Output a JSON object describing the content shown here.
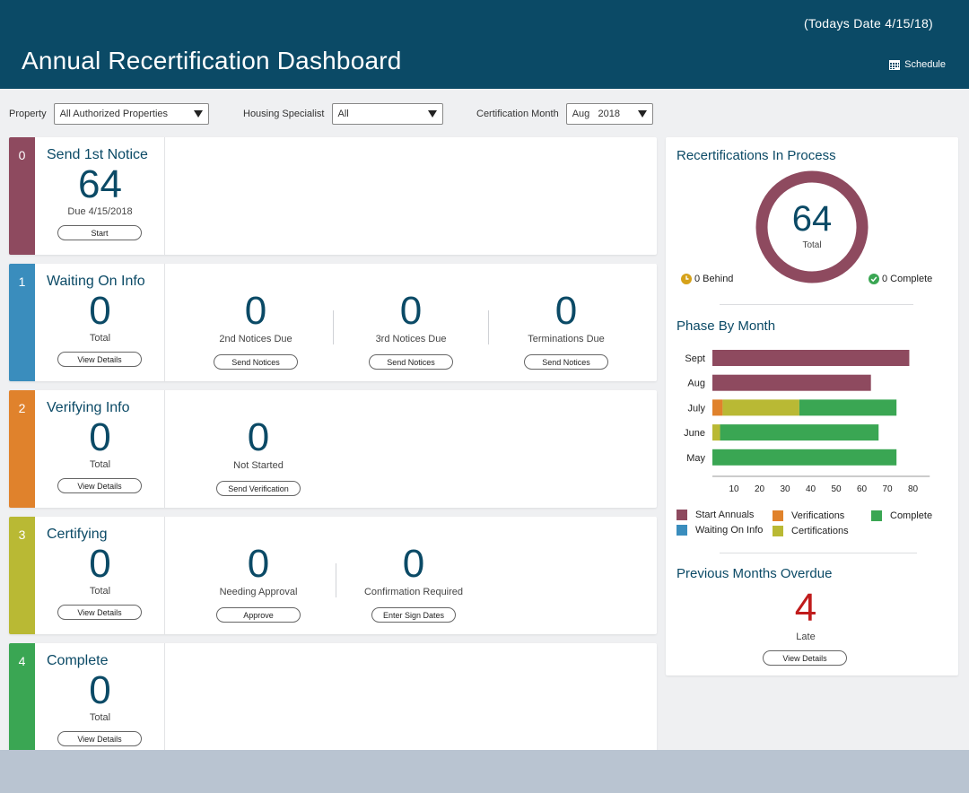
{
  "header": {
    "date_text": "(Todays Date 4/15/18)",
    "title": "Annual Recertification Dashboard",
    "schedule_label": "Schedule"
  },
  "filters": {
    "property_label": "Property",
    "property_value": "All Authorized Properties",
    "specialist_label": "Housing Specialist",
    "specialist_value": "All",
    "month_label": "Certification Month",
    "month_value": "Aug",
    "year_value": "2018"
  },
  "colors": {
    "brand": "#0b4a66",
    "phase0": "#8e4a5f",
    "phase1": "#3a8dbd",
    "phase2": "#e0822c",
    "phase3": "#b9b934",
    "phase4": "#3aa653",
    "overdue": "#c01c1c"
  },
  "phases": [
    {
      "index": "0",
      "title": "Send 1st Notice",
      "value": "64",
      "sub": "Due 4/15/2018",
      "button": "Start",
      "metrics": []
    },
    {
      "index": "1",
      "title": "Waiting On Info",
      "value": "0",
      "sub": "Total",
      "button": "View Details",
      "metrics": [
        {
          "value": "0",
          "label": "2nd Notices Due",
          "button": "Send Notices"
        },
        {
          "value": "0",
          "label": "3rd Notices Due",
          "button": "Send Notices"
        },
        {
          "value": "0",
          "label": "Terminations Due",
          "button": "Send Notices"
        }
      ]
    },
    {
      "index": "2",
      "title": "Verifying Info",
      "value": "0",
      "sub": "Total",
      "button": "View Details",
      "metrics": [
        {
          "value": "0",
          "label": "Not Started",
          "button": "Send Verification"
        }
      ]
    },
    {
      "index": "3",
      "title": "Certifying",
      "value": "0",
      "sub": "Total",
      "button": "View Details",
      "metrics": [
        {
          "value": "0",
          "label": "Needing Approval",
          "button": "Approve"
        },
        {
          "value": "0",
          "label": "Confirmation Required",
          "button": "Enter Sign Dates"
        }
      ]
    },
    {
      "index": "4",
      "title": "Complete",
      "value": "0",
      "sub": "Total",
      "button": "View Details",
      "metrics": []
    }
  ],
  "side": {
    "in_process_title": "Recertifications In Process",
    "total_value": "64",
    "total_label": "Total",
    "behind_text": "0 Behind",
    "complete_text": "0 Complete",
    "phase_title": "Phase By Month",
    "overdue_title": "Previous Months Overdue",
    "overdue_value": "4",
    "overdue_label": "Late",
    "overdue_button": "View Details"
  },
  "chart_data": {
    "type": "bar",
    "orientation": "horizontal",
    "stacked": true,
    "title": "Phase By Month",
    "categories": [
      "Sept",
      "Aug",
      "July",
      "June",
      "May"
    ],
    "xlim": [
      0,
      85
    ],
    "xticks": [
      10,
      20,
      30,
      40,
      50,
      60,
      70,
      80
    ],
    "series": [
      {
        "name": "Start Annuals",
        "color": "#8e4a5f",
        "values": [
          77,
          62,
          0,
          0,
          0
        ]
      },
      {
        "name": "Waiting On Info",
        "color": "#3a8dbd",
        "values": [
          0,
          0,
          0,
          0,
          0
        ]
      },
      {
        "name": "Verifications",
        "color": "#e0822c",
        "values": [
          0,
          0,
          4,
          0,
          0
        ]
      },
      {
        "name": "Certifications",
        "color": "#b9b934",
        "values": [
          0,
          0,
          30,
          3,
          0
        ]
      },
      {
        "name": "Complete",
        "color": "#3aa653",
        "values": [
          0,
          0,
          38,
          62,
          72
        ]
      }
    ],
    "legend_position": "bottom"
  }
}
